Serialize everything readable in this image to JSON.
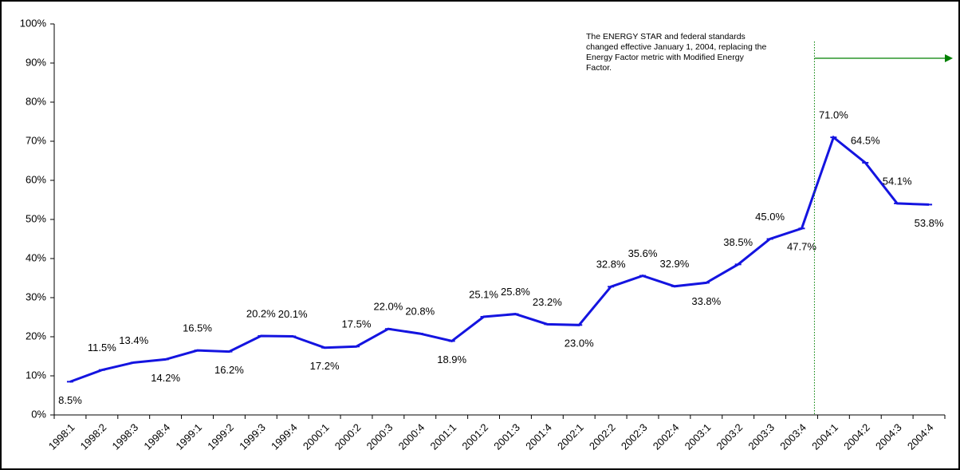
{
  "chart_data": {
    "type": "line",
    "categories": [
      "1998:1",
      "1998:2",
      "1998:3",
      "1998:4",
      "1999:1",
      "1999:2",
      "1999:3",
      "1999:4",
      "2000:1",
      "2000:2",
      "2000:3",
      "2000:4",
      "2001:1",
      "2001:2",
      "2001:3",
      "2001:4",
      "2002:1",
      "2002:2",
      "2002:3",
      "2002:4",
      "2003:1",
      "2003:2",
      "2003:3",
      "2003:4",
      "2004:1",
      "2004:2",
      "2004:3",
      "2004:4"
    ],
    "series": [
      {
        "color": "#1414e0",
        "values": [
          8.5,
          11.5,
          13.4,
          14.2,
          16.5,
          16.2,
          20.2,
          20.1,
          17.2,
          17.5,
          22.0,
          20.8,
          18.9,
          25.1,
          25.8,
          23.2,
          23.0,
          32.8,
          35.6,
          32.9,
          33.8,
          38.5,
          45.0,
          47.7,
          71.0,
          64.5,
          54.1,
          53.8
        ],
        "value_labels": [
          "8.5%",
          "11.5%",
          "13.4%",
          "14.2%",
          "16.5%",
          "16.2%",
          "20.2%",
          "20.1%",
          "17.2%",
          "17.5%",
          "22.0%",
          "20.8%",
          "18.9%",
          "25.1%",
          "25.8%",
          "23.2%",
          "23.0%",
          "32.8%",
          "35.6%",
          "32.9%",
          "33.8%",
          "38.5%",
          "45.0%",
          "47.7%",
          "71.0%",
          "64.5%",
          "54.1%",
          "53.8%"
        ]
      }
    ],
    "ylim": [
      0,
      100
    ],
    "yticks": [
      {
        "value": 0,
        "label": "0%"
      },
      {
        "value": 10,
        "label": "10%"
      },
      {
        "value": 20,
        "label": "20%"
      },
      {
        "value": 30,
        "label": "30%"
      },
      {
        "value": 40,
        "label": "40%"
      },
      {
        "value": 50,
        "label": "50%"
      },
      {
        "value": 60,
        "label": "60%"
      },
      {
        "value": 70,
        "label": "70%"
      },
      {
        "value": 80,
        "label": "80%"
      },
      {
        "value": 90,
        "label": "90%"
      },
      {
        "value": 100,
        "label": "100%"
      }
    ],
    "annotation": [
      "The ENERGY STAR and federal standards",
      "changed effective January 1, 2004, replacing the",
      "Energy Factor metric with Modified Energy",
      "Factor."
    ],
    "annotation_color": "#008000"
  }
}
